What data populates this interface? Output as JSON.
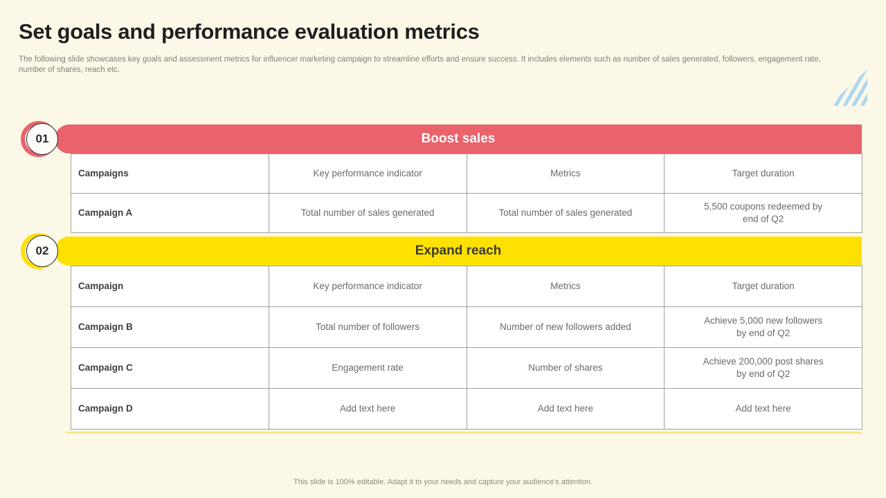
{
  "slide": {
    "title": "Set goals and performance evaluation metrics",
    "subtitle": "The following slide showcases key goals and assessment metrics for influencer marketing campaign to streamline efforts and ensure success. It includes elements such as number of sales generated, followers, engagement rate, number of shares, reach etc.",
    "footer": "This slide is 100% editable.  Adapt it to your needs and capture your audience's attention."
  },
  "colors": {
    "background": "#fcf8e7",
    "accent_red": "#ea626b",
    "accent_yellow": "#ffe100",
    "stripe_blue": "#abd7f0"
  },
  "sections": [
    {
      "number": "01",
      "heading": "Boost sales",
      "table": {
        "headers": [
          "Campaigns",
          "Key performance indicator",
          "Metrics",
          "Target duration"
        ],
        "rows": [
          [
            "Campaign A",
            "Total number of sales generated",
            "Total number of sales generated",
            "5,500 coupons redeemed by\nend of Q2"
          ]
        ]
      }
    },
    {
      "number": "02",
      "heading": "Expand reach",
      "table": {
        "headers": [
          "Campaign",
          "Key performance indicator",
          "Metrics",
          "Target duration"
        ],
        "rows": [
          [
            "Campaign B",
            "Total number of followers",
            "Number of new followers added",
            "Achieve 5,000 new followers\nby end of Q2"
          ],
          [
            "Campaign C",
            "Engagement rate",
            "Number of shares",
            "Achieve 200,000 post shares\nby end of Q2"
          ],
          [
            "Campaign D",
            "Add text here",
            "Add text here",
            "Add text here"
          ]
        ]
      }
    }
  ]
}
